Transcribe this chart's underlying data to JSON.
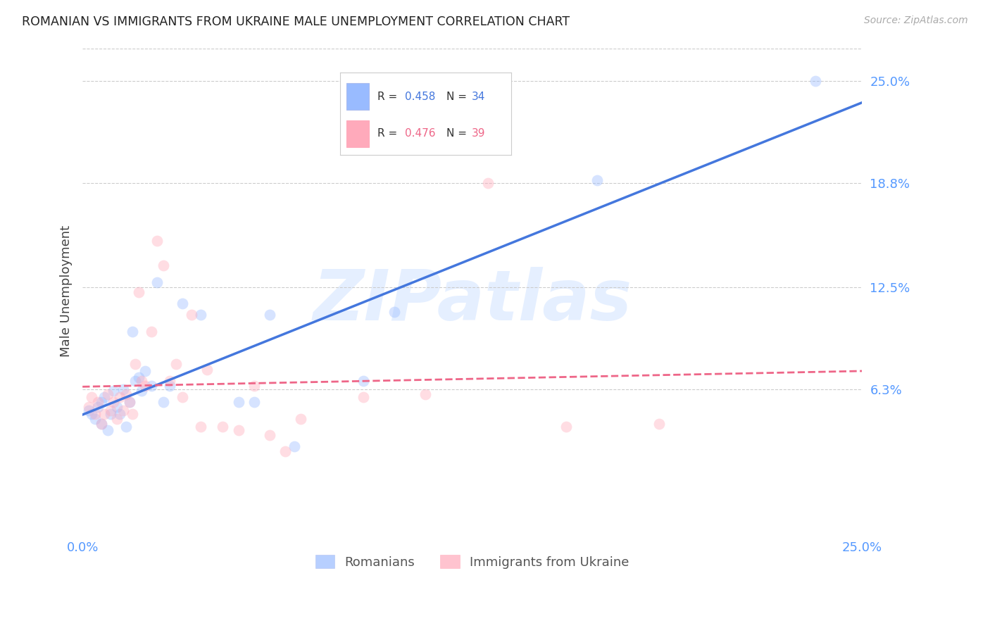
{
  "title": "ROMANIAN VS IMMIGRANTS FROM UKRAINE MALE UNEMPLOYMENT CORRELATION CHART",
  "source": "Source: ZipAtlas.com",
  "ylabel": "Male Unemployment",
  "xlim": [
    0.0,
    0.25
  ],
  "ylim": [
    -0.025,
    0.27
  ],
  "xticks": [
    0.0,
    0.25
  ],
  "xticklabels": [
    "0.0%",
    "25.0%"
  ],
  "ytick_positions": [
    0.063,
    0.125,
    0.188,
    0.25
  ],
  "ytick_labels": [
    "6.3%",
    "12.5%",
    "18.8%",
    "25.0%"
  ],
  "grid_color": "#cccccc",
  "background_color": "#ffffff",
  "romanians": {
    "color": "#99bbff",
    "R": 0.458,
    "N": 34,
    "x": [
      0.002,
      0.003,
      0.004,
      0.005,
      0.006,
      0.006,
      0.007,
      0.008,
      0.009,
      0.01,
      0.011,
      0.012,
      0.013,
      0.014,
      0.015,
      0.016,
      0.017,
      0.018,
      0.019,
      0.02,
      0.022,
      0.024,
      0.026,
      0.028,
      0.032,
      0.038,
      0.05,
      0.055,
      0.06,
      0.068,
      0.09,
      0.1,
      0.165,
      0.235
    ],
    "y": [
      0.05,
      0.048,
      0.045,
      0.052,
      0.055,
      0.042,
      0.058,
      0.038,
      0.048,
      0.062,
      0.052,
      0.048,
      0.063,
      0.04,
      0.055,
      0.098,
      0.068,
      0.07,
      0.062,
      0.074,
      0.065,
      0.128,
      0.055,
      0.065,
      0.115,
      0.108,
      0.055,
      0.055,
      0.108,
      0.028,
      0.068,
      0.11,
      0.19,
      0.25
    ]
  },
  "ukrainians": {
    "color": "#ffaabb",
    "R": 0.476,
    "N": 39,
    "x": [
      0.002,
      0.003,
      0.004,
      0.005,
      0.006,
      0.007,
      0.008,
      0.009,
      0.01,
      0.011,
      0.012,
      0.013,
      0.014,
      0.015,
      0.016,
      0.017,
      0.018,
      0.019,
      0.02,
      0.022,
      0.024,
      0.026,
      0.028,
      0.03,
      0.032,
      0.035,
      0.038,
      0.04,
      0.045,
      0.05,
      0.055,
      0.06,
      0.065,
      0.07,
      0.09,
      0.11,
      0.13,
      0.155,
      0.185
    ],
    "y": [
      0.052,
      0.058,
      0.048,
      0.055,
      0.042,
      0.048,
      0.06,
      0.05,
      0.055,
      0.045,
      0.058,
      0.05,
      0.06,
      0.055,
      0.048,
      0.078,
      0.122,
      0.068,
      0.065,
      0.098,
      0.153,
      0.138,
      0.068,
      0.078,
      0.058,
      0.108,
      0.04,
      0.075,
      0.04,
      0.038,
      0.065,
      0.035,
      0.025,
      0.045,
      0.058,
      0.06,
      0.188,
      0.04,
      0.042
    ]
  },
  "legend_label_blue": "Romanians",
  "legend_label_pink": "Immigrants from Ukraine",
  "marker_size": 130,
  "marker_alpha": 0.4,
  "line_blue_color": "#4477dd",
  "line_pink_color": "#ee6688",
  "watermark_text": "ZIPatlas",
  "watermark_color": "#cce0ff",
  "watermark_alpha": 0.5,
  "watermark_fontsize": 72
}
